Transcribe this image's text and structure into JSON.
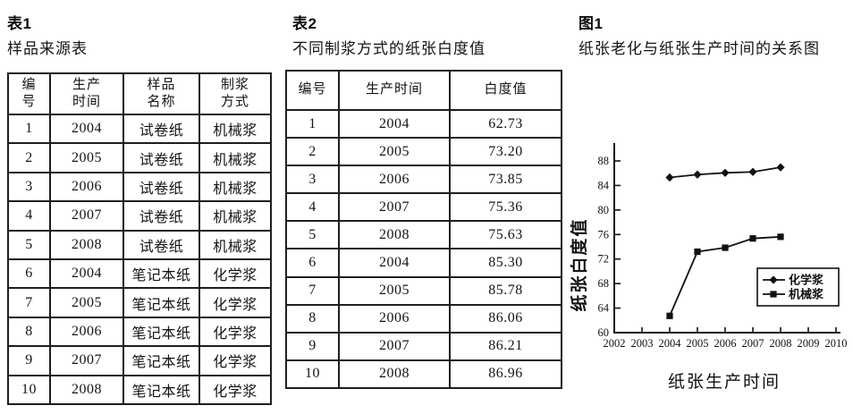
{
  "table1": {
    "tag": "表1",
    "title": "样品来源表",
    "headers": [
      "编\n号",
      "生产\n时间",
      "样品\n名称",
      "制浆\n方式"
    ],
    "rows": [
      [
        "1",
        "2004",
        "试卷纸",
        "机械浆"
      ],
      [
        "2",
        "2005",
        "试卷纸",
        "机械浆"
      ],
      [
        "3",
        "2006",
        "试卷纸",
        "机械浆"
      ],
      [
        "4",
        "2007",
        "试卷纸",
        "机械浆"
      ],
      [
        "5",
        "2008",
        "试卷纸",
        "机械浆"
      ],
      [
        "6",
        "2004",
        "笔记本纸",
        "化学浆"
      ],
      [
        "7",
        "2005",
        "笔记本纸",
        "化学浆"
      ],
      [
        "8",
        "2006",
        "笔记本纸",
        "化学浆"
      ],
      [
        "9",
        "2007",
        "笔记本纸",
        "化学浆"
      ],
      [
        "10",
        "2008",
        "笔记本纸",
        "化学浆"
      ]
    ]
  },
  "table2": {
    "tag": "表2",
    "title": "不同制浆方式的纸张白度值",
    "headers": [
      "编号",
      "生产时间",
      "白度值"
    ],
    "rows": [
      [
        "1",
        "2004",
        "62.73"
      ],
      [
        "2",
        "2005",
        "73.20"
      ],
      [
        "3",
        "2006",
        "73.85"
      ],
      [
        "4",
        "2007",
        "75.36"
      ],
      [
        "5",
        "2008",
        "75.63"
      ],
      [
        "6",
        "2004",
        "85.30"
      ],
      [
        "7",
        "2005",
        "85.78"
      ],
      [
        "8",
        "2006",
        "86.06"
      ],
      [
        "9",
        "2007",
        "86.21"
      ],
      [
        "10",
        "2008",
        "86.96"
      ]
    ]
  },
  "figure": {
    "tag": "图1",
    "title": "纸张老化与纸张生产时间的关系图"
  },
  "chart_data": {
    "type": "line",
    "title": "纸张老化与纸张生产时间的关系图",
    "xlabel": "纸张生产时间",
    "ylabel": "纸张白度值",
    "x": [
      2004,
      2005,
      2006,
      2007,
      2008
    ],
    "series": [
      {
        "name": "化学浆",
        "marker": "diamond",
        "values": [
          85.3,
          85.78,
          86.06,
          86.21,
          86.96
        ]
      },
      {
        "name": "机械浆",
        "marker": "square",
        "values": [
          62.73,
          73.2,
          73.85,
          75.36,
          75.63
        ]
      }
    ],
    "xlim": [
      2002,
      2010
    ],
    "ylim": [
      60,
      89
    ],
    "xticks": [
      2002,
      2003,
      2004,
      2005,
      2006,
      2007,
      2008,
      2009,
      2010
    ],
    "yticks": [
      60,
      64,
      68,
      72,
      76,
      80,
      84,
      88
    ],
    "grid": false,
    "legend_position": "inside lower right",
    "line_color": "#111111"
  }
}
